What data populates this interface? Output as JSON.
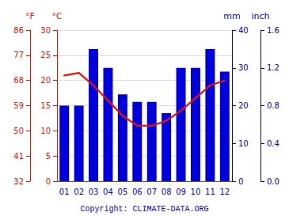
{
  "chart_data": {
    "type": "bar",
    "categories": [
      "01",
      "02",
      "03",
      "04",
      "05",
      "06",
      "07",
      "08",
      "09",
      "10",
      "11",
      "12"
    ],
    "series": [
      {
        "type": "bar",
        "axis": "y2",
        "color": "#0000dd",
        "values": [
          20,
          20,
          35,
          30,
          23,
          21,
          21,
          18,
          30,
          30,
          35,
          29
        ]
      },
      {
        "type": "line",
        "axis": "y",
        "color": "#ee1100",
        "values": [
          21.0,
          21.5,
          19.0,
          16.0,
          13.0,
          11.0,
          11.0,
          12.0,
          14.0,
          16.5,
          19.0,
          20.0
        ]
      }
    ],
    "ylabel": "°C",
    "ylim": [
      0,
      30
    ],
    "yticks": [
      0,
      5,
      10,
      15,
      20,
      25,
      30
    ],
    "y2label": "mm",
    "y2lim": [
      0,
      40
    ],
    "y2ticks": [
      0,
      10,
      20,
      30,
      40
    ],
    "y3label": "°F",
    "y3lim": [
      32,
      86
    ],
    "y3ticks": [
      32,
      41,
      50,
      59,
      68,
      77,
      86
    ],
    "y4label": "inch",
    "y4lim": [
      0.0,
      1.6
    ],
    "y4ticks": [
      {
        "value": 0.0,
        "label": "0.0"
      },
      0.4,
      0.8,
      1.2,
      1.6
    ],
    "annotation": "Copyright: CLIMATE-DATA.ORG",
    "grid": true
  }
}
